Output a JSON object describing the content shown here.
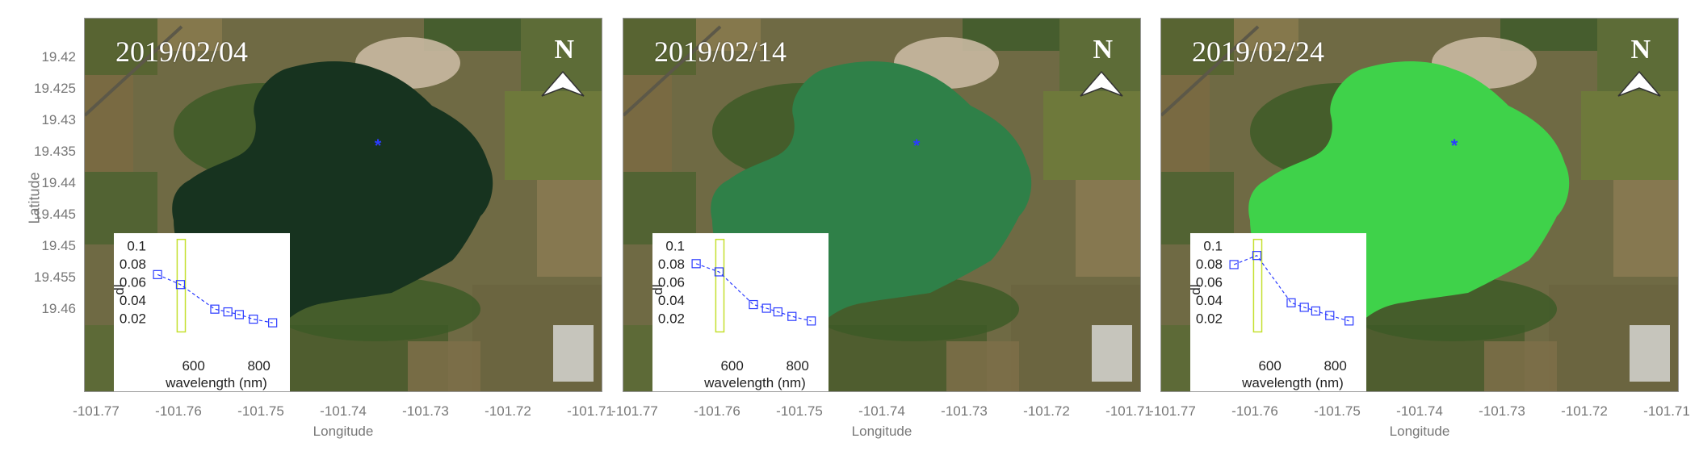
{
  "y_axis": {
    "title": "Latitude",
    "ticks": [
      "19.42",
      "19.425",
      "19.43",
      "19.435",
      "19.44",
      "19.445",
      "19.45",
      "19.455",
      "19.46"
    ]
  },
  "x_axis": {
    "title": "Longitude",
    "ticks": [
      "-101.77",
      "-101.76",
      "-101.75",
      "-101.74",
      "-101.73",
      "-101.72",
      "-101.71"
    ]
  },
  "north_label": "N",
  "marker_glyph": "*",
  "panels": [
    {
      "date": "2019/02/04",
      "lake_color": "#17331f",
      "inset": {
        "xlabel": "wavelength (nm)",
        "ylabel": "dl"
      }
    },
    {
      "date": "2019/02/14",
      "lake_color": "#2f8048",
      "inset": {
        "xlabel": "wavelength (nm)",
        "ylabel": "dl"
      }
    },
    {
      "date": "2019/02/24",
      "lake_color": "#3fd24a",
      "inset": {
        "xlabel": "wavelength (nm)",
        "ylabel": "dl"
      }
    }
  ],
  "chart_data": [
    {
      "type": "line",
      "xlabel": "wavelength (nm)",
      "ylabel": "dl",
      "x": [
        490,
        560,
        665,
        705,
        740,
        783,
        842
      ],
      "y": [
        0.068,
        0.057,
        0.03,
        0.027,
        0.024,
        0.019,
        0.015
      ],
      "xlim": [
        470,
        870
      ],
      "ylim": [
        0,
        0.11
      ],
      "xticks": [
        600,
        800
      ],
      "yticks": [
        0.02,
        0.04,
        0.06,
        0.08,
        0.1
      ],
      "highlight_band": [
        550,
        575
      ]
    },
    {
      "type": "line",
      "xlabel": "wavelength (nm)",
      "ylabel": "dl",
      "x": [
        490,
        560,
        665,
        705,
        740,
        783,
        842
      ],
      "y": [
        0.08,
        0.071,
        0.035,
        0.031,
        0.027,
        0.022,
        0.017
      ],
      "xlim": [
        470,
        870
      ],
      "ylim": [
        0,
        0.11
      ],
      "xticks": [
        600,
        800
      ],
      "yticks": [
        0.02,
        0.04,
        0.06,
        0.08,
        0.1
      ],
      "highlight_band": [
        550,
        575
      ]
    },
    {
      "type": "line",
      "xlabel": "wavelength (nm)",
      "ylabel": "dl",
      "x": [
        490,
        560,
        665,
        705,
        740,
        783,
        842
      ],
      "y": [
        0.079,
        0.089,
        0.037,
        0.032,
        0.028,
        0.023,
        0.017
      ],
      "xlim": [
        470,
        870
      ],
      "ylim": [
        0,
        0.11
      ],
      "xticks": [
        600,
        800
      ],
      "yticks": [
        0.02,
        0.04,
        0.06,
        0.08,
        0.1
      ],
      "highlight_band": [
        550,
        575
      ]
    }
  ]
}
